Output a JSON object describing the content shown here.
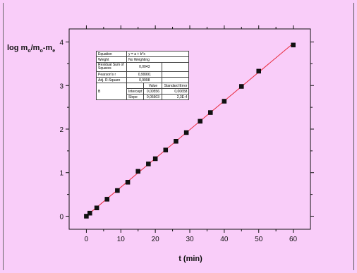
{
  "chart_data": {
    "type": "scatter",
    "xlabel": "t (min)",
    "ylabel_parts": {
      "a": "log m",
      "b": "o",
      "c": "/m",
      "d": "o",
      "e": "-m",
      "f": "e"
    },
    "xlim": [
      -5,
      65
    ],
    "ylim": [
      -0.3,
      4.3
    ],
    "x_ticks": [
      0,
      10,
      20,
      30,
      40,
      50,
      60
    ],
    "x_tick_labels": [
      "0",
      "10",
      "20",
      "30",
      "40",
      "50",
      "60"
    ],
    "y_ticks": [
      0,
      1,
      2,
      3,
      4
    ],
    "y_tick_labels": [
      "0",
      "1",
      "2",
      "3",
      "4"
    ],
    "grid": false,
    "series": [
      {
        "type": "scatter",
        "x": [
          0,
          1,
          3,
          6,
          9,
          12,
          15,
          18,
          20,
          23,
          26,
          29,
          33,
          36,
          40,
          45,
          50,
          60
        ],
        "y": [
          0.0,
          0.07,
          0.19,
          0.39,
          0.59,
          0.78,
          1.03,
          1.2,
          1.32,
          1.52,
          1.72,
          1.92,
          2.18,
          2.38,
          2.64,
          2.98,
          3.33,
          3.93
        ],
        "color": "#111111"
      },
      {
        "type": "line",
        "x": [
          0,
          60
        ],
        "y": [
          0.00556,
          3.96736
        ],
        "color": "#e8283a"
      }
    ],
    "fit_table": {
      "equation_label": "Equation",
      "equation_value": "y = a + b*x",
      "weight_label": "Weight",
      "weight_value": "No Weighting",
      "rss_label": "Residual Sum of Squares",
      "rss_value": "0,0043",
      "pearson_label": "Pearson's r",
      "pearson_value": "0,99991",
      "adjr_label": "Adj. R-Square",
      "adjr_value": "0,9998",
      "value_header": "Value",
      "se_header": "Standard Error",
      "group_label": "B",
      "intercept_label": "Intercept",
      "intercept_value": "0,00556",
      "intercept_se": "0,00658",
      "slope_label": "Slope",
      "slope_value": "0,06603",
      "slope_se": "2,3E-4"
    }
  },
  "colors": {
    "background": "#f9cdf9",
    "points": "#111111",
    "fit_line": "#e8283a",
    "axes": "#111111"
  }
}
